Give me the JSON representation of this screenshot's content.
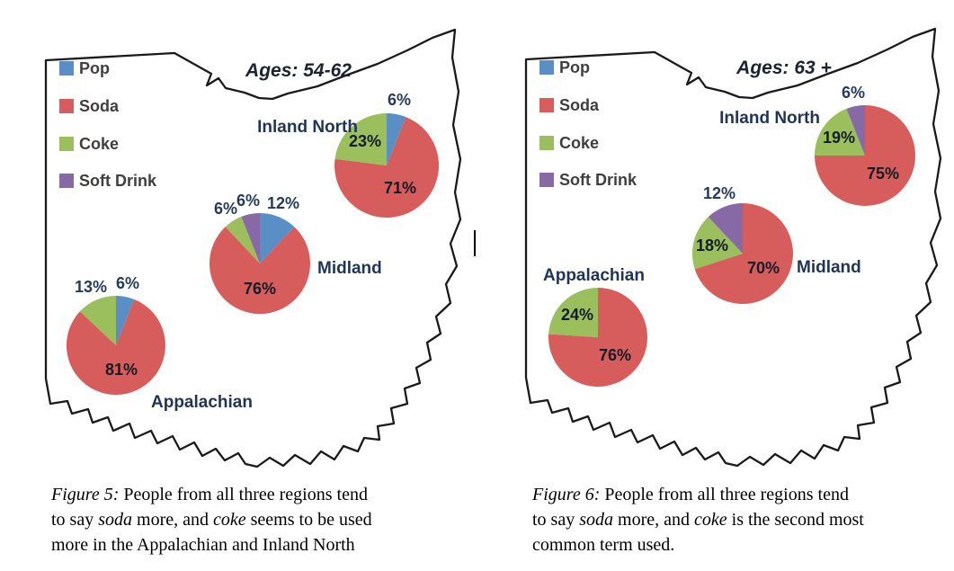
{
  "figure_type": "dual-map-pie-figure",
  "colors": {
    "pop": "#5A8FC6",
    "soda": "#D75C5C",
    "coke": "#9ABF5C",
    "soft_drink": "#8769A5",
    "outline": "#1A1A1A",
    "title_text": "#1B2230",
    "legend_text": "#3F3F3F",
    "region_label": "#1F3557",
    "percent_inside": "#141C28",
    "percent_outside": "#253B5C"
  },
  "chart_data": [
    {
      "type": "pie",
      "map": "Ohio",
      "title": "Ages: 54-62",
      "legend": [
        "Pop",
        "Soda",
        "Coke",
        "Soft Drink"
      ],
      "legend_colors": [
        "#5A8FC6",
        "#D75C5C",
        "#9ABF5C",
        "#8769A5"
      ],
      "legend_position": "top-left",
      "regions": [
        {
          "name": "Inland North",
          "values": [
            6,
            71,
            23,
            0
          ]
        },
        {
          "name": "Midland",
          "values": [
            12,
            76,
            6,
            6
          ]
        },
        {
          "name": "Appalachian",
          "values": [
            6,
            81,
            13,
            0
          ]
        }
      ]
    },
    {
      "type": "pie",
      "map": "Ohio",
      "title": "Ages: 63 +",
      "legend": [
        "Pop",
        "Soda",
        "Coke",
        "Soft Drink"
      ],
      "legend_colors": [
        "#5A8FC6",
        "#D75C5C",
        "#9ABF5C",
        "#8769A5"
      ],
      "legend_position": "top-left",
      "regions": [
        {
          "name": "Inland North",
          "values": [
            0,
            75,
            19,
            6
          ]
        },
        {
          "name": "Midland",
          "values": [
            0,
            70,
            18,
            12
          ]
        },
        {
          "name": "Appalachian",
          "values": [
            0,
            76,
            24,
            0
          ]
        }
      ]
    }
  ],
  "captions": [
    {
      "lines": [
        [
          {
            "t": "Figure 5:",
            "i": true
          },
          {
            "t": " People from all three regions tend",
            "i": false
          }
        ],
        [
          {
            "t": "to say ",
            "i": false
          },
          {
            "t": "soda",
            "i": true
          },
          {
            "t": " more, and ",
            "i": false
          },
          {
            "t": "coke",
            "i": true
          },
          {
            "t": " seems to be used",
            "i": false
          }
        ],
        [
          {
            "t": "more in the Appalachian and Inland North",
            "i": false
          }
        ]
      ]
    },
    {
      "lines": [
        [
          {
            "t": "Figure 6:",
            "i": true
          },
          {
            "t": " People from all three regions tend",
            "i": false
          }
        ],
        [
          {
            "t": "to say ",
            "i": false
          },
          {
            "t": "soda",
            "i": true
          },
          {
            "t": " more, and ",
            "i": false
          },
          {
            "t": "coke",
            "i": true
          },
          {
            "t": " is the second most",
            "i": false
          }
        ],
        [
          {
            "t": "common term used.",
            "i": false
          }
        ]
      ]
    }
  ]
}
